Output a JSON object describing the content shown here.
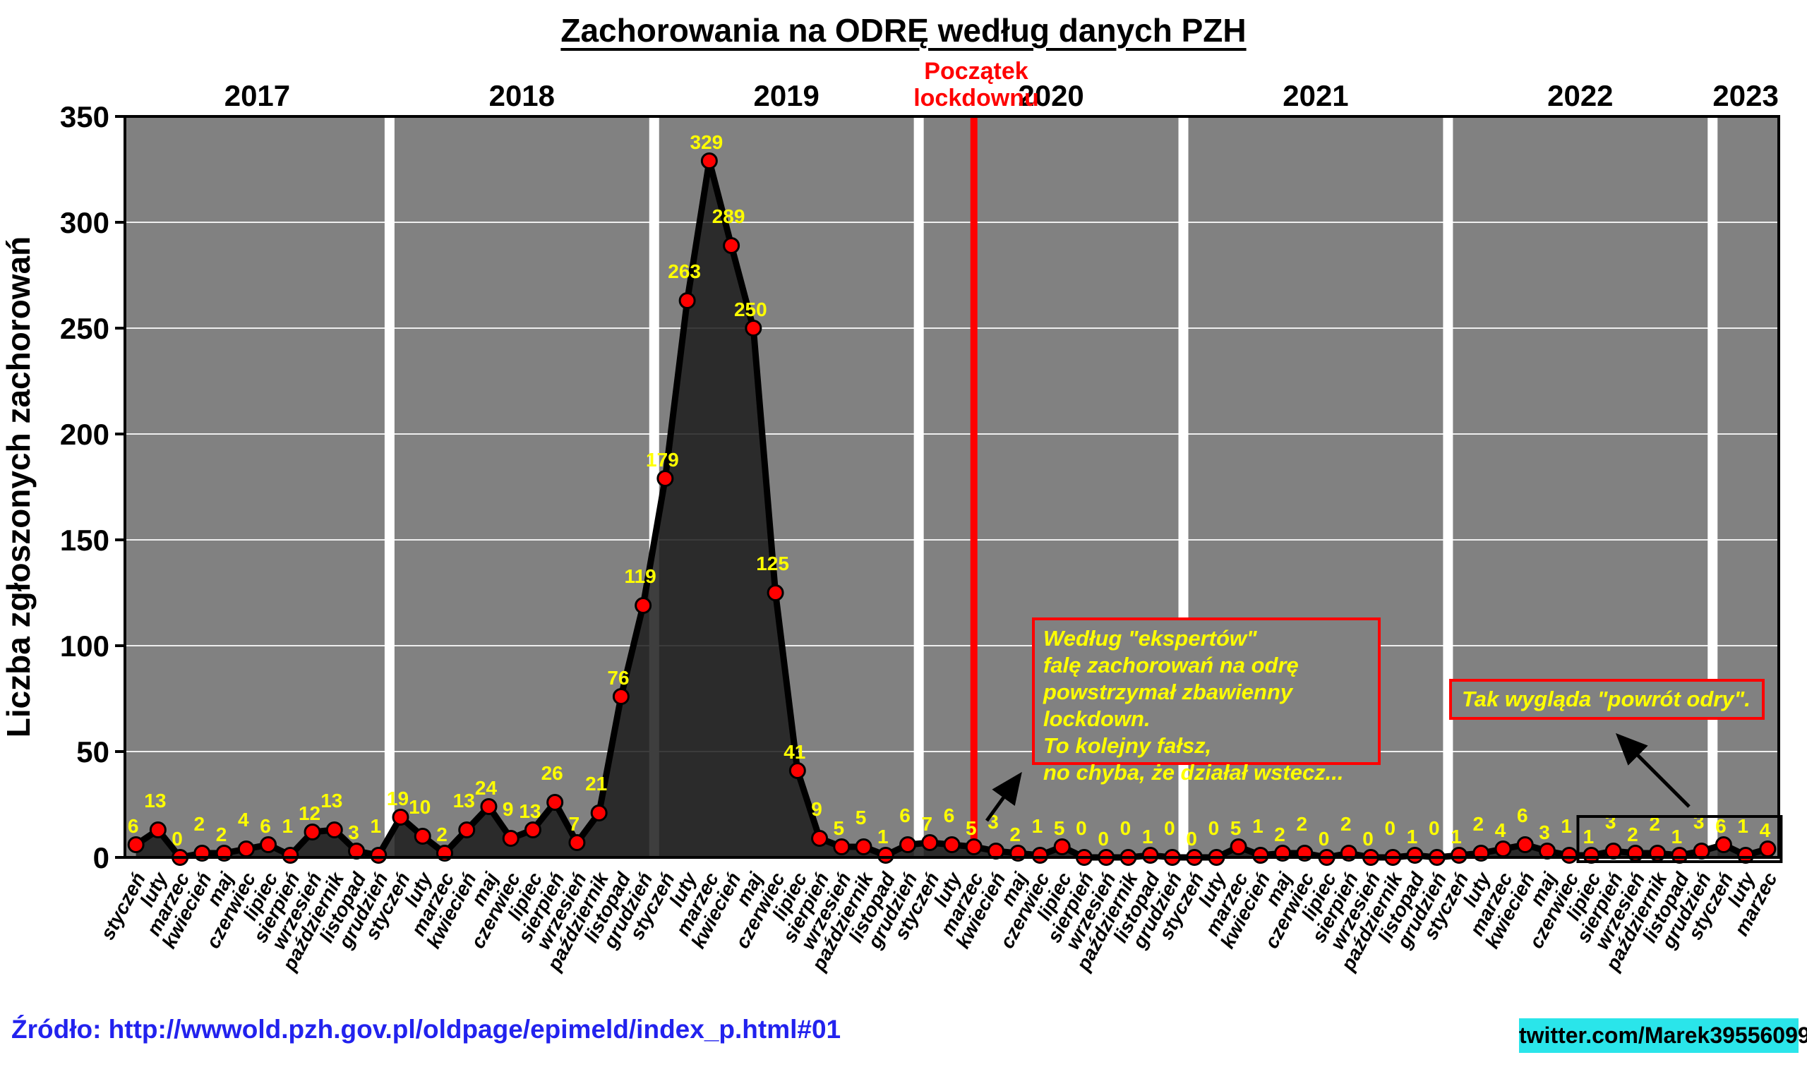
{
  "header": {
    "title": "Zachorowania na ODRĘ według danych PZH",
    "lockdown_line1": "Początek",
    "lockdown_line2": "lockdownu"
  },
  "annotations": {
    "experts": {
      "lines": [
        "Według \"ekspertów\"",
        "falę zachorowań na odrę",
        "powstrzymał zbawienny lockdown.",
        "To kolejny fałsz,",
        "no chyba, że działał wstecz..."
      ]
    },
    "return_text": "Tak wygląda \"powrót odry\"."
  },
  "footer": {
    "source": "Źródło: http://wwwold.pzh.gov.pl/oldpage/epimeld/index_p.html#01",
    "twitter": "twitter.com/Marek39556099"
  },
  "colors": {
    "plot_bg": "#818181",
    "gridline": "#efefef",
    "year_band": "#ffffff",
    "area_fill": "rgba(28,28,28,0.85)",
    "line": "#000000",
    "marker_fill": "#ff0000",
    "marker_edge": "#000000",
    "value_label": "#ffff00",
    "lockdown_line": "#ff0000",
    "axis_text": "#000000",
    "highlight_box": "#000000"
  },
  "chart_data": {
    "type": "line",
    "title": "Zachorowania na ODRĘ według danych PZH",
    "xlabel": "",
    "ylabel": "Liczba zgłoszonych zachorowań",
    "ylim": [
      0,
      350
    ],
    "yticks": [
      0,
      50,
      100,
      150,
      200,
      250,
      300,
      350
    ],
    "grid": "horizontal white gridlines; white vertical bands separate years",
    "legend": "none",
    "months": [
      "styczeń",
      "luty",
      "marzec",
      "kwiecień",
      "maj",
      "czerwiec",
      "lipiec",
      "sierpień",
      "wrzesień",
      "październik",
      "listopad",
      "grudzień"
    ],
    "years": [
      {
        "year": "2017",
        "values": [
          6,
          13,
          0,
          2,
          2,
          4,
          6,
          1,
          12,
          13,
          3,
          1
        ]
      },
      {
        "year": "2018",
        "values": [
          19,
          10,
          2,
          13,
          24,
          9,
          13,
          26,
          7,
          21,
          76,
          119
        ]
      },
      {
        "year": "2019",
        "values": [
          179,
          263,
          329,
          289,
          250,
          125,
          41,
          9,
          5,
          5,
          1,
          6
        ]
      },
      {
        "year": "2020",
        "values": [
          7,
          6,
          5,
          3,
          2,
          1,
          5,
          0,
          0,
          0,
          1,
          0
        ]
      },
      {
        "year": "2021",
        "values": [
          0,
          0,
          5,
          1,
          2,
          2,
          0,
          2,
          0,
          0,
          1,
          0
        ]
      },
      {
        "year": "2022",
        "values": [
          1,
          2,
          4,
          6,
          3,
          1,
          1,
          3,
          2,
          2,
          1,
          3
        ]
      },
      {
        "year": "2023",
        "values": [
          6,
          1,
          4
        ]
      }
    ],
    "lockdown_marker": {
      "year": "2020",
      "month": "marzec",
      "flat_index": 38
    },
    "highlight_box": {
      "start_index": 66,
      "end_index": 74,
      "meaning": "lipiec 2022 - marzec 2023"
    }
  }
}
